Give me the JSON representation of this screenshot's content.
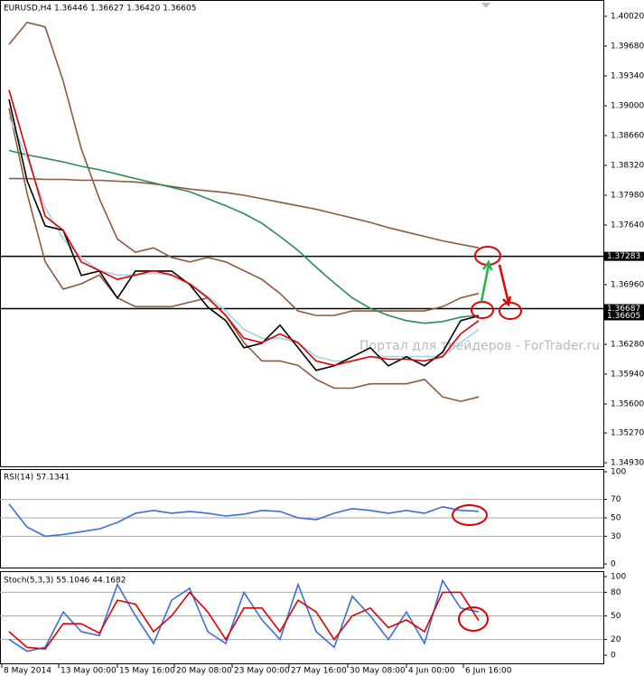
{
  "chart_data": [
    {
      "type": "line",
      "title": "EURUSD,H4 1.36446 1.36627 1.36420 1.36605",
      "watermark": "Портал для трейдеров - ForTrader.ru",
      "xlim": [
        -0.5,
        32.9
      ],
      "ylim": [
        1.34889,
        1.40185
      ],
      "yticks": [
        {
          "value": 1.4002,
          "label": "1.40020"
        },
        {
          "value": 1.3968,
          "label": "1.39680"
        },
        {
          "value": 1.3934,
          "label": "1.39340"
        },
        {
          "value": 1.39,
          "label": "1.39000"
        },
        {
          "value": 1.3866,
          "label": "1.38660"
        },
        {
          "value": 1.3832,
          "label": "1.38320"
        },
        {
          "value": 1.3798,
          "label": "1.37980"
        },
        {
          "value": 1.3764,
          "label": "1.37640"
        },
        {
          "value": 1.3696,
          "label": "1.36960"
        },
        {
          "value": 1.3628,
          "label": "1.36280"
        },
        {
          "value": 1.3594,
          "label": "1.35940"
        },
        {
          "value": 1.356,
          "label": "1.35600"
        },
        {
          "value": 1.3527,
          "label": "1.35270"
        },
        {
          "value": 1.3493,
          "label": "1.34930"
        }
      ],
      "hlines": [
        1.37283,
        1.36687
      ],
      "price_labels": [
        1.37283,
        1.36687,
        1.36605
      ],
      "series": [
        {
          "color": "#8b5a3c",
          "values": [
            1.397,
            1.3995,
            1.399,
            1.3928,
            1.3851,
            1.3794,
            1.3748,
            1.3733,
            1.3738,
            1.3727,
            1.3722,
            1.3727,
            1.3722,
            1.3712,
            1.3702,
            1.3686,
            1.3666,
            1.3661,
            1.3661,
            1.3666,
            1.3666,
            1.3666,
            1.3666,
            1.3666,
            1.3671,
            1.3681,
            1.3686
          ]
        },
        {
          "color": "#8b5a3c",
          "values": [
            1.3897,
            1.38,
            1.3722,
            1.3691,
            1.3697,
            1.3707,
            1.3681,
            1.3671,
            1.3671,
            1.3671,
            1.3676,
            1.3681,
            1.3661,
            1.363,
            1.3609,
            1.3609,
            1.3604,
            1.3588,
            1.3578,
            1.3578,
            1.3583,
            1.3583,
            1.3583,
            1.3588,
            1.3568,
            1.3563,
            1.3568
          ]
        },
        {
          "color": "#8b5a3c",
          "values": [
            1.3817,
            1.3817,
            1.3816,
            1.3816,
            1.3815,
            1.3815,
            1.3814,
            1.3813,
            1.3811,
            1.3808,
            1.3805,
            1.3803,
            1.3801,
            1.3798,
            1.3794,
            1.379,
            1.3786,
            1.3782,
            1.3777,
            1.3772,
            1.3767,
            1.3761,
            1.3756,
            1.3751,
            1.3746,
            1.3742,
            1.3738
          ]
        },
        {
          "color": "#2e8b57",
          "values": [
            1.3849,
            1.3844,
            1.384,
            1.3836,
            1.3831,
            1.3827,
            1.3822,
            1.3817,
            1.3812,
            1.3807,
            1.3802,
            1.3794,
            1.3786,
            1.3777,
            1.3766,
            1.3751,
            1.3735,
            1.3716,
            1.3698,
            1.3681,
            1.3669,
            1.3661,
            1.3655,
            1.3652,
            1.3654,
            1.3659,
            1.3661
          ]
        },
        {
          "color": "#9fd6e2",
          "values": [
            1.3887,
            1.3841,
            1.3784,
            1.3748,
            1.3727,
            1.3712,
            1.3707,
            1.3707,
            1.3709,
            1.3707,
            1.3697,
            1.3683,
            1.3666,
            1.3645,
            1.3635,
            1.3635,
            1.363,
            1.3614,
            1.3609,
            1.3609,
            1.3614,
            1.3614,
            1.3614,
            1.3614,
            1.3614,
            1.363,
            1.3645
          ]
        },
        {
          "color": "#000000",
          "values": [
            1.39073,
            1.38146,
            1.37631,
            1.3758,
            1.37065,
            1.37116,
            1.36807,
            1.37116,
            1.37116,
            1.37116,
            1.36962,
            1.36704,
            1.3655,
            1.36241,
            1.36292,
            1.36498,
            1.36241,
            1.35983,
            1.36035,
            1.36138,
            1.36241,
            1.36035,
            1.36138,
            1.36035,
            1.36189,
            1.3655,
            1.36605
          ]
        },
        {
          "color": "#e00000",
          "values": [
            1.3918,
            1.3846,
            1.3774,
            1.3758,
            1.3722,
            1.3712,
            1.3702,
            1.3707,
            1.3712,
            1.3707,
            1.3697,
            1.3681,
            1.3661,
            1.3635,
            1.363,
            1.364,
            1.363,
            1.3609,
            1.3604,
            1.3609,
            1.3614,
            1.3611,
            1.3611,
            1.3609,
            1.3614,
            1.364,
            1.3655
          ]
        }
      ]
    },
    {
      "type": "line",
      "title": "RSI(14) 57.1341",
      "xlim": [
        -0.5,
        32.9
      ],
      "ylim": [
        0,
        100
      ],
      "yticks": [
        0,
        30,
        50,
        70,
        100
      ],
      "level_lines": true,
      "series": [
        {
          "color": "#3a6fd8",
          "values": [
            65,
            40,
            30,
            32,
            35,
            38,
            45,
            55,
            58,
            55,
            57,
            55,
            52,
            54,
            58,
            57,
            50,
            48,
            55,
            60,
            58,
            55,
            58,
            55,
            62,
            58,
            57.1341
          ]
        }
      ]
    },
    {
      "type": "line",
      "title": "Stoch(5,3,3) 55.1046 44.1682",
      "xlim": [
        -0.5,
        32.9
      ],
      "ylim": [
        0,
        100
      ],
      "yticks": [
        0,
        20,
        50,
        80,
        100
      ],
      "level_lines": true,
      "xticks": [
        {
          "value": -0.4,
          "label": "8 May 2014"
        },
        {
          "value": 2.75,
          "label": "13 May 00:00"
        },
        {
          "value": 6,
          "label": "15 May 16:00"
        },
        {
          "value": 9.15,
          "label": "20 May 08:00"
        },
        {
          "value": 12.35,
          "label": "23 May 00:00"
        },
        {
          "value": 15.5,
          "label": "27 May 16:00"
        },
        {
          "value": 18.75,
          "label": "30 May 08:00"
        },
        {
          "value": 22,
          "label": "4 Jun 00:00"
        },
        {
          "value": 25.15,
          "label": "6 Jun 16:00"
        }
      ],
      "series": [
        {
          "color": "#3a6fd8",
          "values": [
            20,
            5,
            10,
            55,
            30,
            25,
            90,
            50,
            15,
            70,
            85,
            30,
            15,
            80,
            45,
            20,
            90,
            30,
            10,
            75,
            50,
            20,
            55,
            15,
            95,
            60,
            55.1046
          ]
        },
        {
          "color": "#e00000",
          "values": [
            30,
            10,
            8,
            40,
            40,
            28,
            70,
            65,
            30,
            50,
            80,
            55,
            20,
            60,
            60,
            30,
            70,
            55,
            20,
            50,
            60,
            35,
            45,
            30,
            80,
            80,
            44.1682
          ]
        }
      ]
    }
  ]
}
